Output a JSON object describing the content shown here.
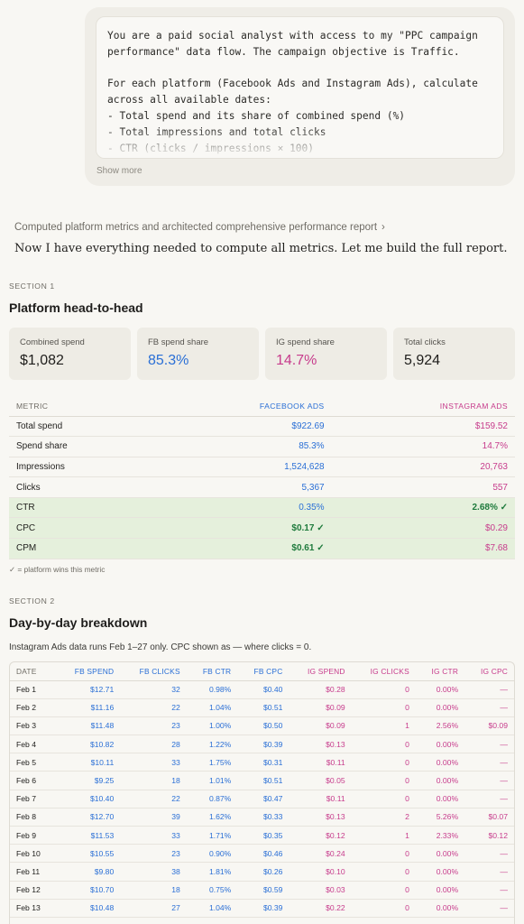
{
  "prompt": {
    "lines": [
      "You are a paid social analyst with access to my \"PPC campaign",
      "performance\" data flow. The campaign objective is Traffic.",
      "",
      "For each platform (Facebook Ads and Instagram Ads), calculate",
      "across all available dates:",
      "- Total spend and its share of combined spend (%)",
      "- Total impressions and total clicks",
      "- CTR (clicks / impressions × 100)"
    ],
    "show_more": "Show more"
  },
  "thinking": {
    "label": "Computed platform metrics and architected comprehensive performance report",
    "chevron": "›"
  },
  "intro": "Now I have everything needed to compute all metrics. Let me build the full report.",
  "section1": {
    "label": "SECTION 1",
    "title": "Platform head-to-head",
    "cards": [
      {
        "label": "Combined spend",
        "value": "$1,082",
        "tone": ""
      },
      {
        "label": "FB spend share",
        "value": "85.3%",
        "tone": "blue"
      },
      {
        "label": "IG spend share",
        "value": "14.7%",
        "tone": "pink"
      },
      {
        "label": "Total clicks",
        "value": "5,924",
        "tone": ""
      }
    ],
    "table": {
      "headers": [
        "METRIC",
        "FACEBOOK ADS",
        "INSTAGRAM ADS"
      ],
      "rows": [
        {
          "metric": "Total spend",
          "fb": "$922.69",
          "ig": "$159.52",
          "winner": ""
        },
        {
          "metric": "Spend share",
          "fb": "85.3%",
          "ig": "14.7%",
          "winner": ""
        },
        {
          "metric": "Impressions",
          "fb": "1,524,628",
          "ig": "20,763",
          "winner": ""
        },
        {
          "metric": "Clicks",
          "fb": "5,367",
          "ig": "557",
          "winner": ""
        },
        {
          "metric": "CTR",
          "fb": "0.35%",
          "ig": "2.68% ✓",
          "winner": "ig"
        },
        {
          "metric": "CPC",
          "fb": "$0.17 ✓",
          "ig": "$0.29",
          "winner": "fb"
        },
        {
          "metric": "CPM",
          "fb": "$0.61 ✓",
          "ig": "$7.68",
          "winner": "fb"
        }
      ]
    },
    "footnote": "✓ = platform wins this metric"
  },
  "section2": {
    "label": "SECTION 2",
    "title": "Day-by-day breakdown",
    "description": "Instagram Ads data runs Feb 1–27 only. CPC shown as — where clicks = 0.",
    "headers": [
      "DATE",
      "FB SPEND",
      "FB CLICKS",
      "FB CTR",
      "FB CPC",
      "IG SPEND",
      "IG CLICKS",
      "IG CTR",
      "IG CPC"
    ],
    "rows": [
      [
        "Feb 1",
        "$12.71",
        "32",
        "0.98%",
        "$0.40",
        "$0.28",
        "0",
        "0.00%",
        "—"
      ],
      [
        "Feb 2",
        "$11.16",
        "22",
        "1.04%",
        "$0.51",
        "$0.09",
        "0",
        "0.00%",
        "—"
      ],
      [
        "Feb 3",
        "$11.48",
        "23",
        "1.00%",
        "$0.50",
        "$0.09",
        "1",
        "2.56%",
        "$0.09"
      ],
      [
        "Feb 4",
        "$10.82",
        "28",
        "1.22%",
        "$0.39",
        "$0.13",
        "0",
        "0.00%",
        "—"
      ],
      [
        "Feb 5",
        "$10.11",
        "33",
        "1.75%",
        "$0.31",
        "$0.11",
        "0",
        "0.00%",
        "—"
      ],
      [
        "Feb 6",
        "$9.25",
        "18",
        "1.01%",
        "$0.51",
        "$0.05",
        "0",
        "0.00%",
        "—"
      ],
      [
        "Feb 7",
        "$10.40",
        "22",
        "0.87%",
        "$0.47",
        "$0.11",
        "0",
        "0.00%",
        "—"
      ],
      [
        "Feb 8",
        "$12.70",
        "39",
        "1.62%",
        "$0.33",
        "$0.13",
        "2",
        "5.26%",
        "$0.07"
      ],
      [
        "Feb 9",
        "$11.53",
        "33",
        "1.71%",
        "$0.35",
        "$0.12",
        "1",
        "2.33%",
        "$0.12"
      ],
      [
        "Feb 10",
        "$10.55",
        "23",
        "0.90%",
        "$0.46",
        "$0.24",
        "0",
        "0.00%",
        "—"
      ],
      [
        "Feb 11",
        "$9.80",
        "38",
        "1.81%",
        "$0.26",
        "$0.10",
        "0",
        "0.00%",
        "—"
      ],
      [
        "Feb 12",
        "$10.70",
        "18",
        "0.75%",
        "$0.59",
        "$0.03",
        "0",
        "0.00%",
        "—"
      ],
      [
        "Feb 13",
        "$10.48",
        "27",
        "1.04%",
        "$0.39",
        "$0.22",
        "0",
        "0.00%",
        "—"
      ]
    ]
  },
  "colors": {
    "facebook": "#2a6fd6",
    "instagram": "#c73c8c",
    "win": "#1e7a3c",
    "win_bg": "#e5f0dc"
  }
}
